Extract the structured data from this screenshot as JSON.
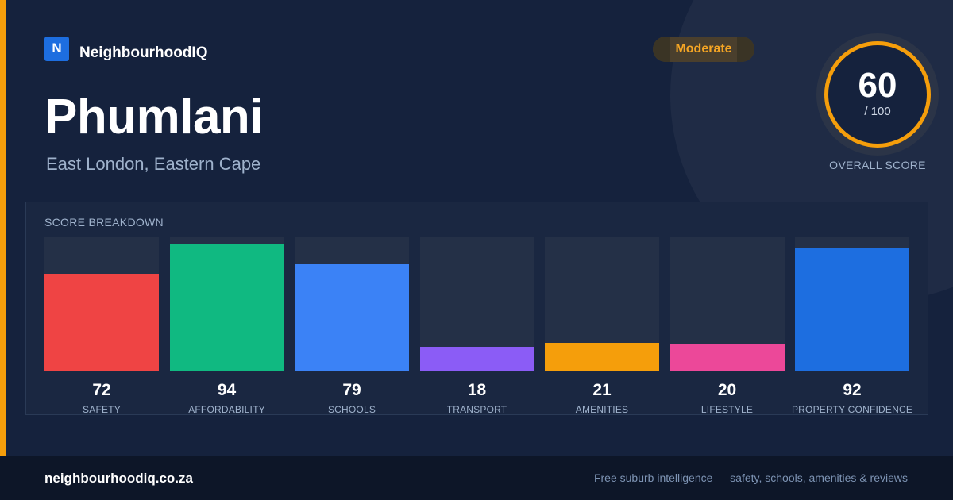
{
  "brand": {
    "logo_letter": "N",
    "name": "NeighbourhoodIQ"
  },
  "suburb": {
    "name": "Phumlani",
    "location": "East London, Eastern Cape"
  },
  "rating": {
    "label": "Moderate",
    "color": "#f5a524"
  },
  "overall": {
    "score": "60",
    "max_label": "/ 100",
    "label": "OVERALL SCORE",
    "ring_color": "#f59e0b"
  },
  "breakdown": {
    "title": "SCORE BREAKDOWN",
    "items": [
      {
        "label": "SAFETY",
        "value": 72,
        "color": "#ef4444"
      },
      {
        "label": "AFFORDABILITY",
        "value": 94,
        "color": "#10b981"
      },
      {
        "label": "SCHOOLS",
        "value": 79,
        "color": "#3b82f6"
      },
      {
        "label": "TRANSPORT",
        "value": 18,
        "color": "#8b5cf6"
      },
      {
        "label": "AMENITIES",
        "value": 21,
        "color": "#f59e0b"
      },
      {
        "label": "LIFESTYLE",
        "value": 20,
        "color": "#ec4899"
      },
      {
        "label": "PROPERTY CONFIDENCE",
        "value": 92,
        "color": "#1d6ee0"
      }
    ]
  },
  "footer": {
    "url": "neighbourhoodiq.co.za",
    "tagline": "Free suburb intelligence — safety, schools, amenities & reviews"
  }
}
